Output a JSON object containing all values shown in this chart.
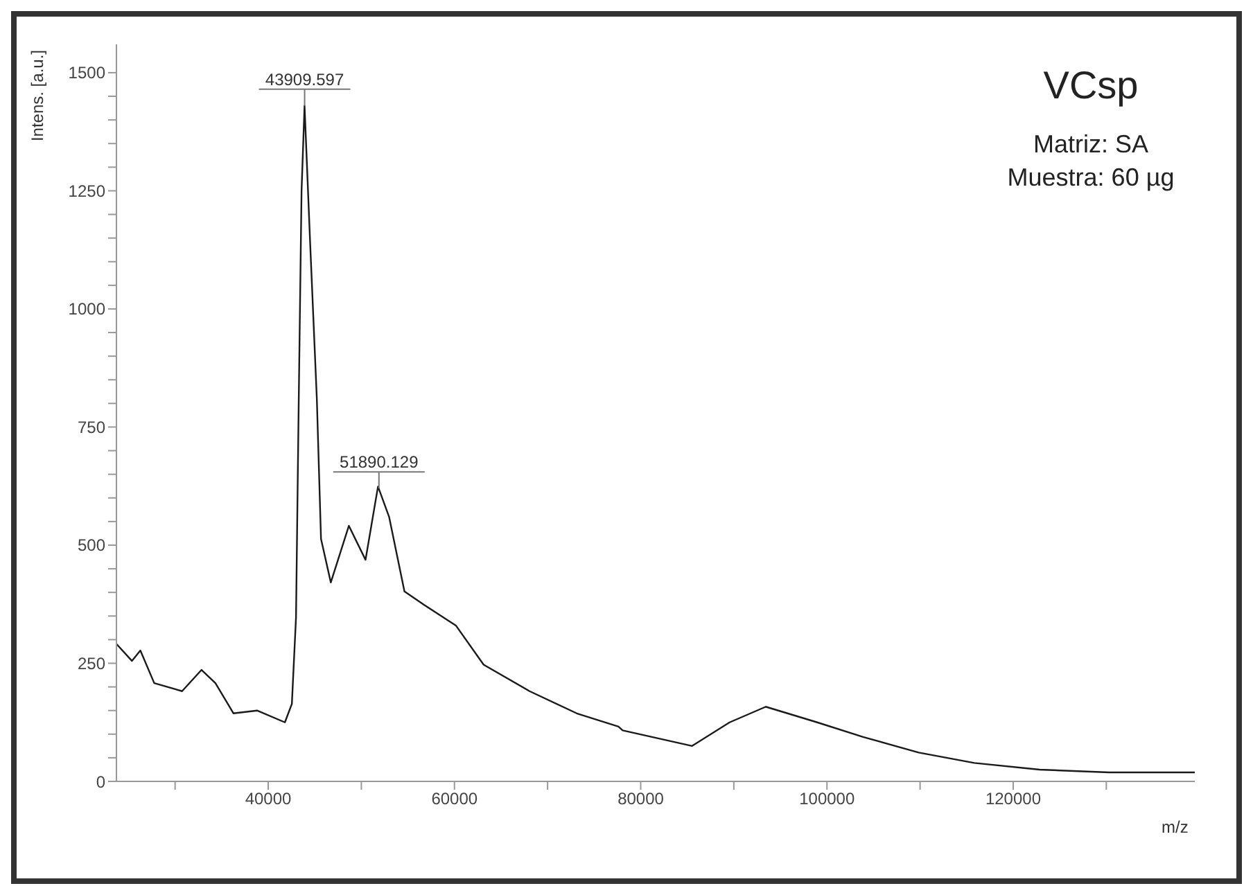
{
  "chart_data": {
    "type": "line",
    "title": "VCsp",
    "xlabel": "m/z",
    "ylabel": "Intens. [a.u.]",
    "annotations": [
      {
        "text": "43909.597",
        "x": 43909.597,
        "y": 1430
      },
      {
        "text": "51890.129",
        "x": 51890.129,
        "y": 620
      },
      "Matriz: SA",
      "Muestra: 60 µg"
    ],
    "series": [
      {
        "color": "#1a1a1a",
        "x": [
          23700,
          25370,
          26270,
          27760,
          30750,
          32840,
          34330,
          36270,
          38800,
          41790,
          42540,
          42985,
          43280,
          43580,
          43900,
          44480,
          45220,
          45670,
          46720,
          48660,
          50450,
          51790,
          52980,
          54630,
          56720,
          60150,
          63130,
          68060,
          73130,
          77610,
          78060,
          85520,
          89550,
          93430,
          98950,
          103880,
          109850,
          115820,
          122830,
          130300,
          139500
        ],
        "values": [
          291,
          255,
          277,
          208,
          191,
          236,
          208,
          144,
          150,
          125,
          164,
          347,
          810,
          1250,
          1430,
          1150,
          810,
          513,
          421,
          541,
          469,
          624,
          560,
          402,
          374,
          330,
          247,
          191,
          144,
          116,
          108,
          75,
          125,
          158,
          125,
          94,
          61,
          39,
          25,
          19,
          19
        ]
      }
    ],
    "xlim": [
      23700,
      139500
    ],
    "xticks": [
      {
        "value": 30000,
        "label": null
      },
      40000,
      {
        "value": 50000,
        "label": null
      },
      60000,
      {
        "value": 70000,
        "label": null
      },
      80000,
      {
        "value": 90000,
        "label": null
      },
      100000,
      {
        "value": 110000,
        "label": null
      },
      120000,
      {
        "value": 130000,
        "label": null
      }
    ],
    "ylim": [
      0,
      1560
    ],
    "yticks": [
      0,
      {
        "value": 50,
        "label": null
      },
      {
        "value": 100,
        "label": null
      },
      {
        "value": 150,
        "label": null
      },
      {
        "value": 200,
        "label": null
      },
      250,
      {
        "value": 300,
        "label": null
      },
      {
        "value": 350,
        "label": null
      },
      {
        "value": 400,
        "label": null
      },
      {
        "value": 450,
        "label": null
      },
      500,
      {
        "value": 550,
        "label": null
      },
      {
        "value": 600,
        "label": null
      },
      {
        "value": 650,
        "label": null
      },
      {
        "value": 700,
        "label": null
      },
      750,
      {
        "value": 800,
        "label": null
      },
      {
        "value": 850,
        "label": null
      },
      {
        "value": 900,
        "label": null
      },
      {
        "value": 950,
        "label": null
      },
      1000,
      {
        "value": 1050,
        "label": null
      },
      {
        "value": 1100,
        "label": null
      },
      {
        "value": 1150,
        "label": null
      },
      {
        "value": 1200,
        "label": null
      },
      1250,
      {
        "value": 1300,
        "label": null
      },
      {
        "value": 1350,
        "label": null
      },
      {
        "value": 1400,
        "label": null
      },
      {
        "value": 1450,
        "label": null
      },
      1500
    ]
  }
}
